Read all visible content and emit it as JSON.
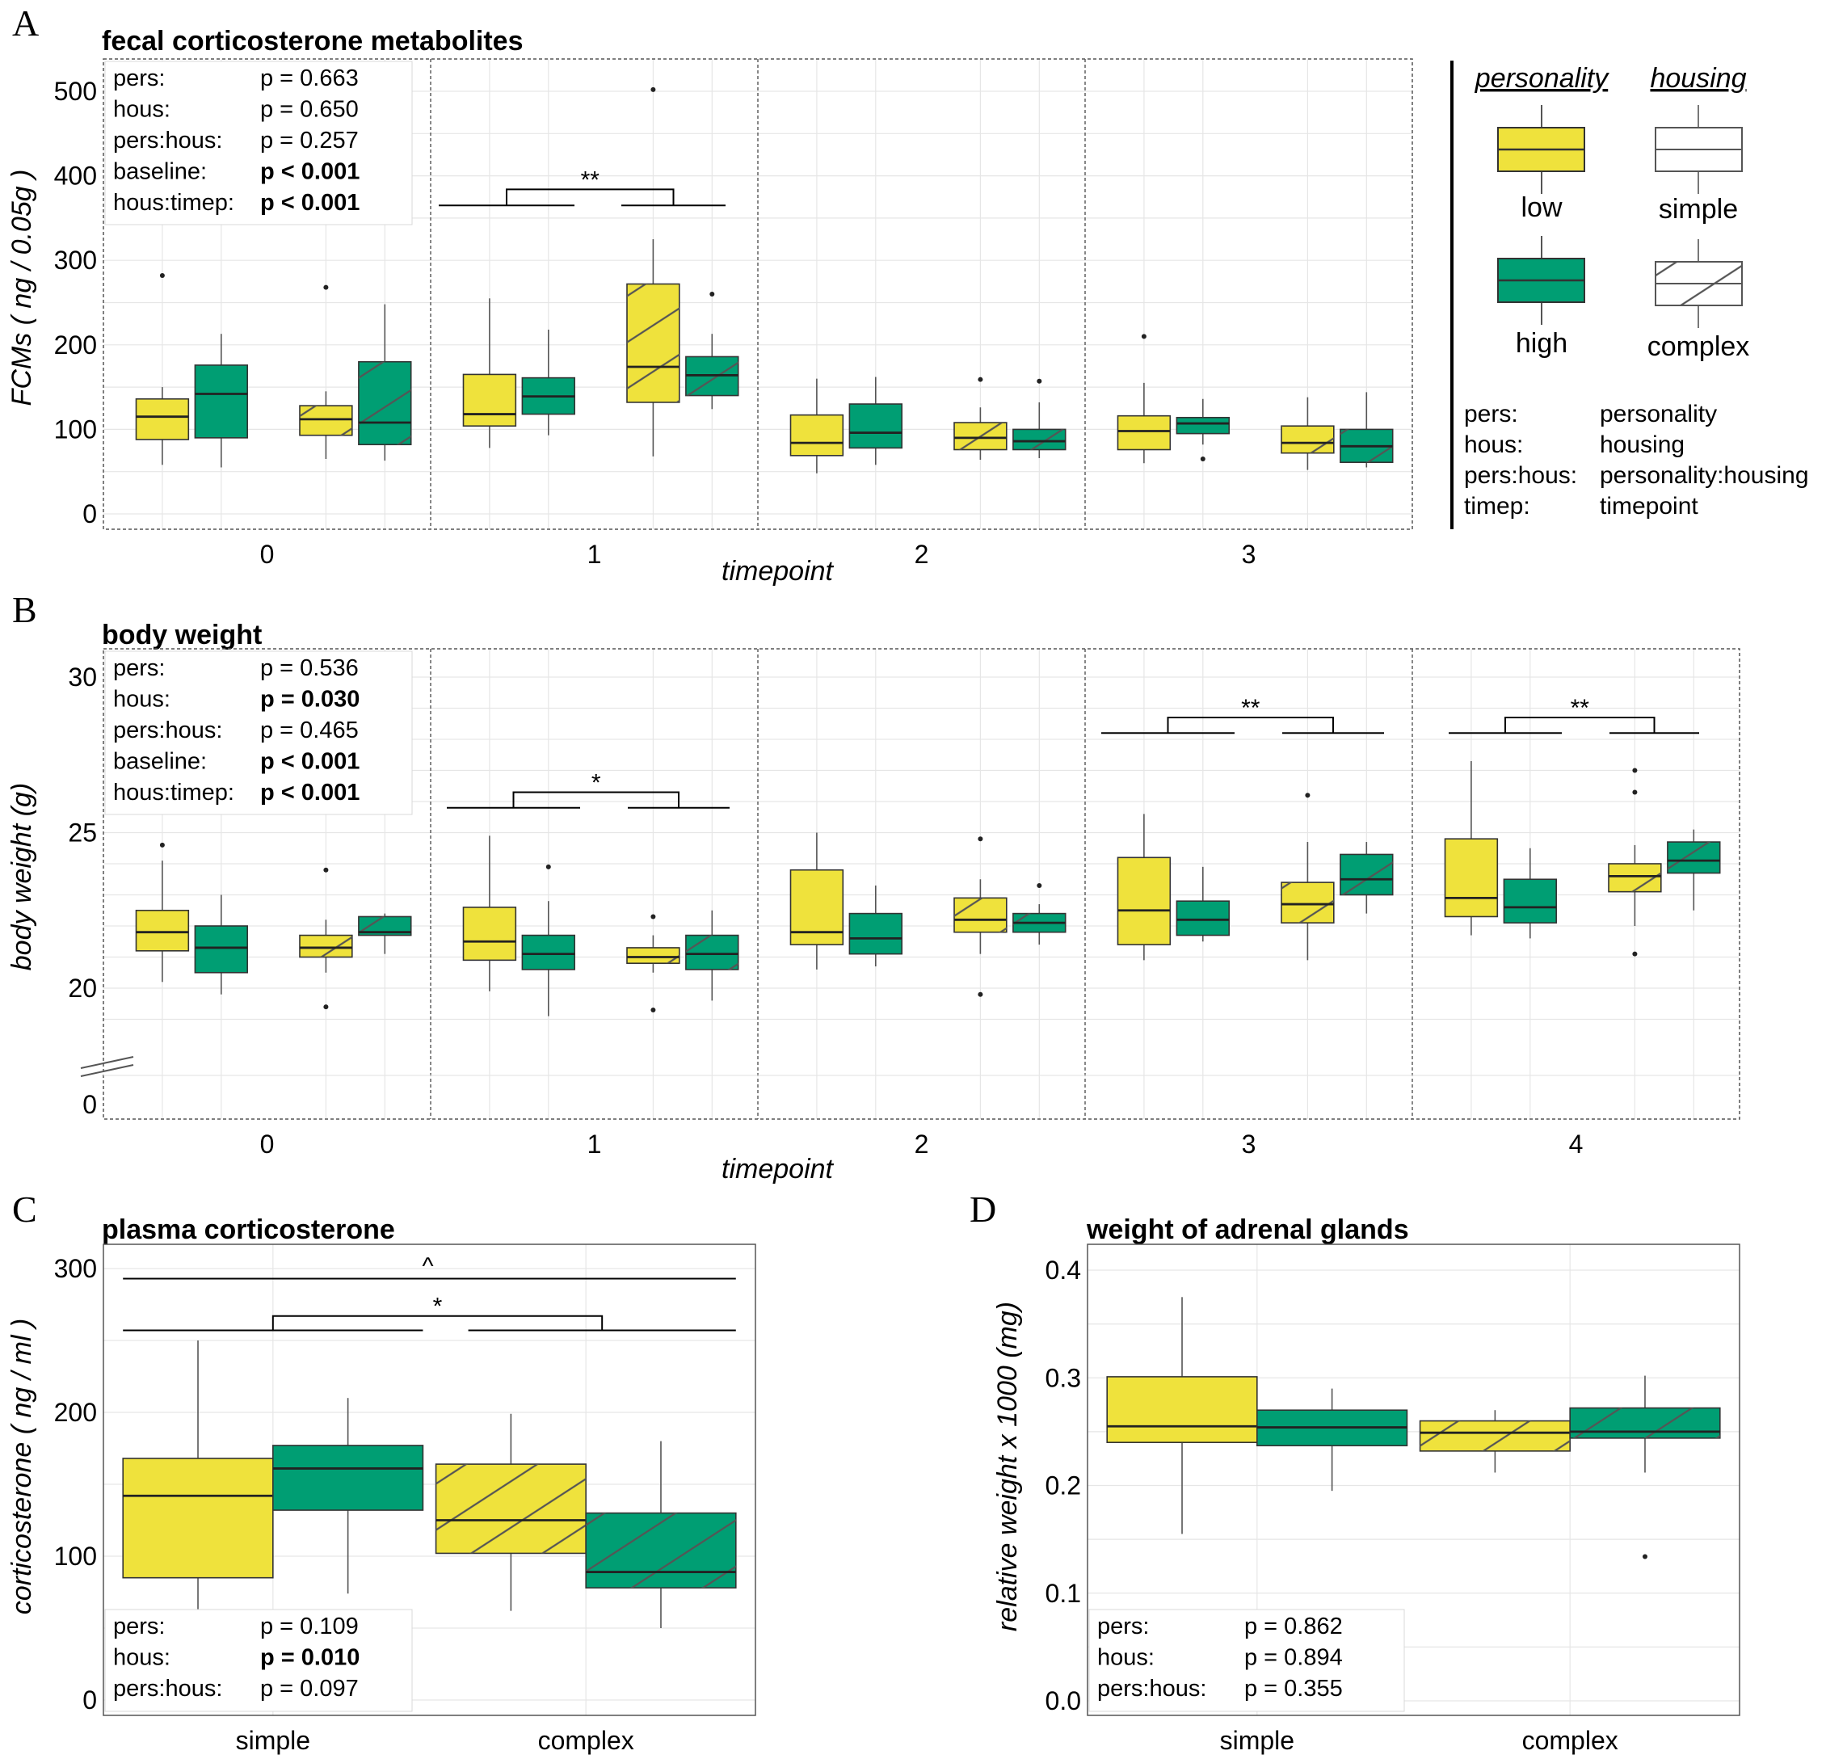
{
  "colors": {
    "low": "#efe23c",
    "high": "#009e73",
    "hatch": "#555555",
    "grid": "#e6e6e6",
    "panel_border": "#555555"
  },
  "legend": {
    "personality_title": "personality",
    "housing_title": "housing",
    "low": "low",
    "high": "high",
    "simple": "simple",
    "complex": "complex",
    "abbreviations": [
      {
        "key": "pers:",
        "value": "personality"
      },
      {
        "key": "hous:",
        "value": "housing"
      },
      {
        "key": "pers:hous:",
        "value": "personality:housing"
      },
      {
        "key": "timep:",
        "value": "timepoint"
      }
    ]
  },
  "chart_data": [
    {
      "panel": "A",
      "type": "boxplot",
      "title": "fecal corticosterone metabolites",
      "xlabel": "timepoint",
      "ylabel": "FCMs ( ng / 0.05g )",
      "ylim": [
        -20,
        540
      ],
      "yticks": [
        0,
        100,
        200,
        300,
        400,
        500
      ],
      "facets": [
        "0",
        "1",
        "2",
        "3"
      ],
      "groups": [
        "low-simple",
        "high-simple",
        "low-complex",
        "high-complex"
      ],
      "boxes": [
        {
          "facet": "0",
          "group": "low-simple",
          "min": 58,
          "q1": 88,
          "median": 115,
          "q3": 136,
          "max": 150,
          "outliers": [
            282
          ]
        },
        {
          "facet": "0",
          "group": "high-simple",
          "min": 55,
          "q1": 90,
          "median": 142,
          "q3": 176,
          "max": 213,
          "outliers": []
        },
        {
          "facet": "0",
          "group": "low-complex",
          "min": 65,
          "q1": 93,
          "median": 112,
          "q3": 128,
          "max": 145,
          "outliers": [
            268
          ]
        },
        {
          "facet": "0",
          "group": "high-complex",
          "min": 63,
          "q1": 82,
          "median": 108,
          "q3": 180,
          "max": 248,
          "outliers": []
        },
        {
          "facet": "1",
          "group": "low-simple",
          "min": 78,
          "q1": 104,
          "median": 118,
          "q3": 165,
          "max": 255,
          "outliers": []
        },
        {
          "facet": "1",
          "group": "high-simple",
          "min": 93,
          "q1": 118,
          "median": 139,
          "q3": 161,
          "max": 218,
          "outliers": []
        },
        {
          "facet": "1",
          "group": "low-complex",
          "min": 68,
          "q1": 132,
          "median": 174,
          "q3": 272,
          "max": 325,
          "outliers": [
            502
          ]
        },
        {
          "facet": "1",
          "group": "high-complex",
          "min": 124,
          "q1": 140,
          "median": 164,
          "q3": 186,
          "max": 213,
          "outliers": [
            260
          ]
        },
        {
          "facet": "2",
          "group": "low-simple",
          "min": 48,
          "q1": 69,
          "median": 84,
          "q3": 117,
          "max": 160,
          "outliers": []
        },
        {
          "facet": "2",
          "group": "high-simple",
          "min": 58,
          "q1": 78,
          "median": 96,
          "q3": 130,
          "max": 162,
          "outliers": []
        },
        {
          "facet": "2",
          "group": "low-complex",
          "min": 64,
          "q1": 76,
          "median": 90,
          "q3": 108,
          "max": 126,
          "outliers": [
            159
          ]
        },
        {
          "facet": "2",
          "group": "high-complex",
          "min": 66,
          "q1": 76,
          "median": 86,
          "q3": 100,
          "max": 132,
          "outliers": [
            157
          ]
        },
        {
          "facet": "3",
          "group": "low-simple",
          "min": 60,
          "q1": 76,
          "median": 98,
          "q3": 116,
          "max": 155,
          "outliers": [
            210
          ]
        },
        {
          "facet": "3",
          "group": "high-simple",
          "min": 82,
          "q1": 95,
          "median": 107,
          "q3": 114,
          "max": 136,
          "outliers": [
            65
          ]
        },
        {
          "facet": "3",
          "group": "low-complex",
          "min": 52,
          "q1": 72,
          "median": 84,
          "q3": 104,
          "max": 138,
          "outliers": []
        },
        {
          "facet": "3",
          "group": "high-complex",
          "min": 55,
          "q1": 61,
          "median": 80,
          "q3": 100,
          "max": 144,
          "outliers": []
        }
      ],
      "significance": [
        {
          "facet": "1",
          "label": "**",
          "between": "simple vs complex"
        }
      ],
      "stats": [
        {
          "term": "pers:",
          "p": "p = 0.663",
          "bold": false
        },
        {
          "term": "hous:",
          "p": "p = 0.650",
          "bold": false
        },
        {
          "term": "pers:hous:",
          "p": "p = 0.257",
          "bold": false
        },
        {
          "term": "baseline:",
          "p": "p < 0.001",
          "bold": true
        },
        {
          "term": "hous:timep:",
          "p": "p < 0.001",
          "bold": true
        }
      ]
    },
    {
      "panel": "B",
      "type": "boxplot",
      "title": "body weight",
      "xlabel": "timepoint",
      "ylabel": "body weight (g)",
      "ylim": [
        17.5,
        30.5
      ],
      "yticks": [
        20,
        25,
        30
      ],
      "ybreak": "0",
      "facets": [
        "0",
        "1",
        "2",
        "3",
        "4"
      ],
      "groups": [
        "low-simple",
        "high-simple",
        "low-complex",
        "high-complex"
      ],
      "boxes": [
        {
          "facet": "0",
          "group": "low-simple",
          "min": 20.2,
          "q1": 21.2,
          "median": 21.8,
          "q3": 22.5,
          "max": 24.1,
          "outliers": [
            24.6
          ]
        },
        {
          "facet": "0",
          "group": "high-simple",
          "min": 19.8,
          "q1": 20.5,
          "median": 21.3,
          "q3": 22.0,
          "max": 23.0,
          "outliers": []
        },
        {
          "facet": "0",
          "group": "low-complex",
          "min": 20.5,
          "q1": 21.0,
          "median": 21.3,
          "q3": 21.7,
          "max": 22.2,
          "outliers": [
            23.8,
            19.4
          ]
        },
        {
          "facet": "0",
          "group": "high-complex",
          "min": 21.1,
          "q1": 21.7,
          "median": 21.8,
          "q3": 22.3,
          "max": 22.4,
          "outliers": []
        },
        {
          "facet": "1",
          "group": "low-simple",
          "min": 19.9,
          "q1": 20.9,
          "median": 21.5,
          "q3": 22.6,
          "max": 24.9,
          "outliers": []
        },
        {
          "facet": "1",
          "group": "high-simple",
          "min": 19.1,
          "q1": 20.6,
          "median": 21.1,
          "q3": 21.7,
          "max": 22.8,
          "outliers": [
            23.9
          ]
        },
        {
          "facet": "1",
          "group": "low-complex",
          "min": 20.5,
          "q1": 20.8,
          "median": 21.0,
          "q3": 21.3,
          "max": 21.7,
          "outliers": [
            22.3,
            19.3
          ]
        },
        {
          "facet": "1",
          "group": "high-complex",
          "min": 19.6,
          "q1": 20.6,
          "median": 21.1,
          "q3": 21.7,
          "max": 22.5,
          "outliers": []
        },
        {
          "facet": "2",
          "group": "low-simple",
          "min": 20.6,
          "q1": 21.4,
          "median": 21.8,
          "q3": 23.8,
          "max": 25.0,
          "outliers": []
        },
        {
          "facet": "2",
          "group": "high-simple",
          "min": 20.7,
          "q1": 21.1,
          "median": 21.6,
          "q3": 22.4,
          "max": 23.3,
          "outliers": []
        },
        {
          "facet": "2",
          "group": "low-complex",
          "min": 21.1,
          "q1": 21.8,
          "median": 22.2,
          "q3": 22.9,
          "max": 23.5,
          "outliers": [
            24.8,
            19.8
          ]
        },
        {
          "facet": "2",
          "group": "high-complex",
          "min": 21.4,
          "q1": 21.8,
          "median": 22.1,
          "q3": 22.4,
          "max": 22.7,
          "outliers": [
            23.3
          ]
        },
        {
          "facet": "3",
          "group": "low-simple",
          "min": 20.9,
          "q1": 21.4,
          "median": 22.5,
          "q3": 24.2,
          "max": 25.6,
          "outliers": []
        },
        {
          "facet": "3",
          "group": "high-simple",
          "min": 21.5,
          "q1": 21.7,
          "median": 22.2,
          "q3": 22.8,
          "max": 23.9,
          "outliers": []
        },
        {
          "facet": "3",
          "group": "low-complex",
          "min": 20.9,
          "q1": 22.1,
          "median": 22.7,
          "q3": 23.4,
          "max": 24.7,
          "outliers": [
            26.2
          ]
        },
        {
          "facet": "3",
          "group": "high-complex",
          "min": 22.4,
          "q1": 23.0,
          "median": 23.5,
          "q3": 24.3,
          "max": 24.7,
          "outliers": []
        },
        {
          "facet": "4",
          "group": "low-simple",
          "min": 21.7,
          "q1": 22.3,
          "median": 22.9,
          "q3": 24.8,
          "max": 27.3,
          "outliers": []
        },
        {
          "facet": "4",
          "group": "high-simple",
          "min": 21.6,
          "q1": 22.1,
          "median": 22.6,
          "q3": 23.5,
          "max": 24.5,
          "outliers": []
        },
        {
          "facet": "4",
          "group": "low-complex",
          "min": 22.0,
          "q1": 23.1,
          "median": 23.6,
          "q3": 24.0,
          "max": 24.6,
          "outliers": [
            27.0,
            26.3,
            21.1
          ]
        },
        {
          "facet": "4",
          "group": "high-complex",
          "min": 22.5,
          "q1": 23.7,
          "median": 24.1,
          "q3": 24.7,
          "max": 25.1,
          "outliers": []
        }
      ],
      "significance": [
        {
          "facet": "1",
          "label": "*",
          "between": "simple vs complex"
        },
        {
          "facet": "3",
          "label": "**",
          "between": "simple vs complex"
        },
        {
          "facet": "4",
          "label": "**",
          "between": "simple vs complex"
        }
      ],
      "stats": [
        {
          "term": "pers:",
          "p": "p = 0.536",
          "bold": false
        },
        {
          "term": "hous:",
          "p": "p = 0.030",
          "bold": true
        },
        {
          "term": "pers:hous:",
          "p": "p = 0.465",
          "bold": false
        },
        {
          "term": "baseline:",
          "p": "p < 0.001",
          "bold": true
        },
        {
          "term": "hous:timep:",
          "p": "p < 0.001",
          "bold": true
        }
      ]
    },
    {
      "panel": "C",
      "type": "boxplot",
      "title": "plasma corticosterone",
      "xlabel": "",
      "ylabel": "corticosterone ( ng / ml )",
      "ylim": [
        -10,
        317
      ],
      "yticks": [
        0,
        100,
        200,
        300
      ],
      "categories": [
        "simple",
        "complex"
      ],
      "boxes": [
        {
          "category": "simple",
          "group": "low",
          "min": 60,
          "q1": 85,
          "median": 142,
          "q3": 168,
          "max": 250,
          "outliers": []
        },
        {
          "category": "simple",
          "group": "high",
          "min": 74,
          "q1": 132,
          "median": 161,
          "q3": 177,
          "max": 210,
          "outliers": []
        },
        {
          "category": "complex",
          "group": "low",
          "min": 62,
          "q1": 102,
          "median": 125,
          "q3": 164,
          "max": 199,
          "outliers": []
        },
        {
          "category": "complex",
          "group": "high",
          "min": 50,
          "q1": 78,
          "median": 89,
          "q3": 130,
          "max": 180,
          "outliers": []
        }
      ],
      "significance": [
        {
          "label": "^",
          "between": "simple vs complex (outer)"
        },
        {
          "label": "*",
          "between": "simple vs complex"
        }
      ],
      "stats": [
        {
          "term": "pers:",
          "p": "p = 0.109",
          "bold": false
        },
        {
          "term": "hous:",
          "p": "p = 0.010",
          "bold": true
        },
        {
          "term": "pers:hous:",
          "p": "p = 0.097",
          "bold": false
        }
      ]
    },
    {
      "panel": "D",
      "type": "boxplot",
      "title": "weight of adrenal glands",
      "xlabel": "",
      "ylabel": "relative weight x 1000 (mg)",
      "ylim": [
        -0.01,
        0.425
      ],
      "yticks": [
        0.0,
        0.1,
        0.2,
        0.3,
        0.4
      ],
      "yticklabels": [
        "0.0",
        "0.1",
        "0.2",
        "0.3",
        "0.4"
      ],
      "categories": [
        "simple",
        "complex"
      ],
      "boxes": [
        {
          "category": "simple",
          "group": "low",
          "min": 0.155,
          "q1": 0.24,
          "median": 0.255,
          "q3": 0.301,
          "max": 0.375,
          "outliers": []
        },
        {
          "category": "simple",
          "group": "high",
          "min": 0.195,
          "q1": 0.237,
          "median": 0.254,
          "q3": 0.27,
          "max": 0.29,
          "outliers": []
        },
        {
          "category": "complex",
          "group": "low",
          "min": 0.212,
          "q1": 0.232,
          "median": 0.249,
          "q3": 0.26,
          "max": 0.27,
          "outliers": []
        },
        {
          "category": "complex",
          "group": "high",
          "min": 0.212,
          "q1": 0.244,
          "median": 0.25,
          "q3": 0.272,
          "max": 0.302,
          "outliers": [
            0.134
          ]
        }
      ],
      "significance": [],
      "stats": [
        {
          "term": "pers:",
          "p": "p = 0.862",
          "bold": false
        },
        {
          "term": "hous:",
          "p": "p = 0.894",
          "bold": false
        },
        {
          "term": "pers:hous:",
          "p": "p = 0.355",
          "bold": false
        }
      ]
    }
  ]
}
